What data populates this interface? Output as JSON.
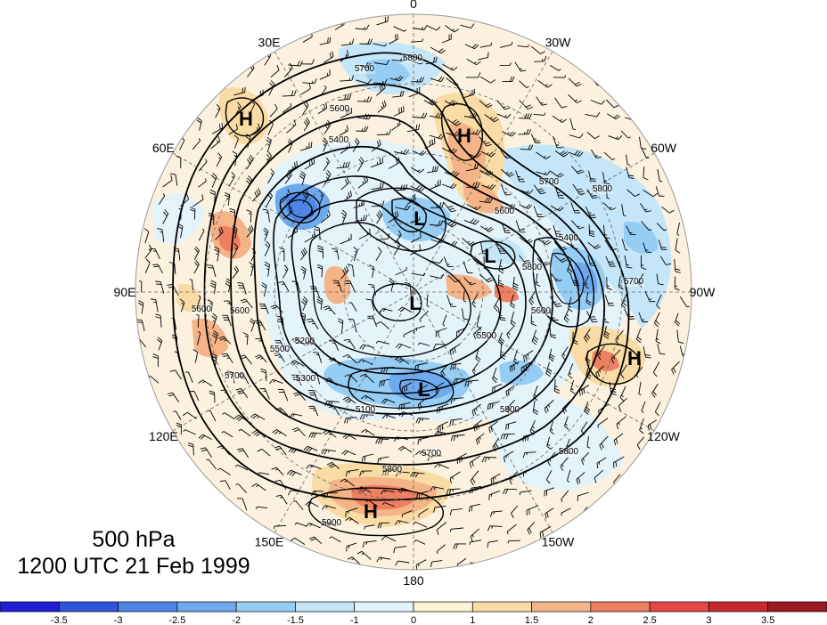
{
  "map": {
    "projection": "north-polar-stereographic",
    "center_lon_label": "0",
    "longitude_labels": [
      {
        "text": "0",
        "deg": 0
      },
      {
        "text": "30W",
        "deg": 30
      },
      {
        "text": "60W",
        "deg": 60
      },
      {
        "text": "90W",
        "deg": 90
      },
      {
        "text": "120W",
        "deg": 120
      },
      {
        "text": "150W",
        "deg": 150
      },
      {
        "text": "180",
        "deg": 180
      },
      {
        "text": "150E",
        "deg": 210
      },
      {
        "text": "120E",
        "deg": 240
      },
      {
        "text": "90E",
        "deg": 270
      },
      {
        "text": "60E",
        "deg": 300
      },
      {
        "text": "30E",
        "deg": 330
      }
    ],
    "pressure_centers": [
      {
        "name": "high-center",
        "text": "H",
        "kind": "H"
      },
      {
        "name": "high-center",
        "text": "H",
        "kind": "H"
      },
      {
        "name": "high-center",
        "text": "H",
        "kind": "H"
      },
      {
        "name": "high-center",
        "text": "H",
        "kind": "H"
      },
      {
        "name": "low-center",
        "text": "L",
        "kind": "L"
      },
      {
        "name": "low-center",
        "text": "L",
        "kind": "L"
      },
      {
        "name": "low-center",
        "text": "L",
        "kind": "L"
      },
      {
        "name": "low-center",
        "text": "L",
        "kind": "L"
      }
    ],
    "contour_labels": [
      "5800",
      "5700",
      "5600",
      "5400",
      "5700",
      "5800",
      "5600",
      "5400",
      "5800",
      "5700",
      "5600",
      "5500",
      "5300",
      "5200",
      "5100",
      "5700",
      "5800",
      "5900",
      "5800",
      "5600",
      "5500",
      "5800",
      "5600",
      "5700"
    ]
  },
  "title": {
    "level": "500 hPa",
    "time": "1200 UTC 21 Feb 1999"
  },
  "colorbar": {
    "labels": [
      "-3.5",
      "-3",
      "-2.5",
      "-2",
      "-1.5",
      "-1",
      "0",
      "1",
      "1.5",
      "2",
      "2.5",
      "3",
      "3.5"
    ],
    "colors": [
      "#1f1fd6",
      "#2f55dd",
      "#4d86e8",
      "#6ea9ef",
      "#96cdf5",
      "#c4e6f8",
      "#e3f3fa",
      "#fdf2d6",
      "#f9dca5",
      "#f4b487",
      "#ee8062",
      "#e44a43",
      "#c72a2e",
      "#9d1a24"
    ]
  }
}
